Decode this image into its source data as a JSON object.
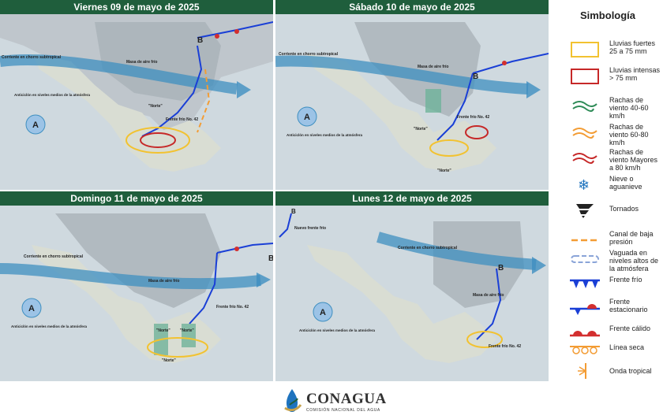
{
  "panels": [
    {
      "title": "Viernes 09 de mayo de 2025",
      "labels": {
        "jet": "Corriente en chorro subtropical",
        "air": "Masa de aire frío",
        "anti": "Anticiclón en niveles medios de la atmósfera",
        "front": "Frente frío No. 42",
        "norte1": "\"Norte\""
      }
    },
    {
      "title": "Sábado 10 de mayo de 2025",
      "labels": {
        "jet": "Corriente en chorro subtropical",
        "air": "Masa de aire frío",
        "anti": "Anticiclón en niveles medios de la atmósfera",
        "front": "Frente frío No. 42",
        "norte1": "\"Norte\"",
        "norte2": "\"Norte\""
      }
    },
    {
      "title": "Domingo 11 de mayo de 2025",
      "labels": {
        "jet": "Corriente en chorro subtropical",
        "air": "Masa de aire frío",
        "anti": "Anticiclón en niveles medios de la atmósfera",
        "front": "Frente frío No. 42",
        "norte1": "\"Norte\"",
        "norte2": "\"Norte\"",
        "norte3": "\"Norte\""
      }
    },
    {
      "title": "Lunes 12 de mayo de 2025",
      "labels": {
        "jet": "Corriente en chorro subtropical",
        "air": "Masa de aire frío",
        "anti": "Anticiclón en niveles medios de la atmósfera",
        "front": "Frente frío No. 42",
        "newfront": "Nuevo frente frío"
      }
    }
  ],
  "legend": {
    "title": "Simbología",
    "items": [
      {
        "label": "Lluvias fuertes 25 a 75 mm",
        "icon": "yellow-box-icon"
      },
      {
        "label": "Lluvias intensas > 75 mm",
        "icon": "red-box-icon"
      },
      {
        "label": "Rachas de viento 40-60 km/h",
        "icon": "green-wind-icon"
      },
      {
        "label": "Rachas de viento 60-80 km/h",
        "icon": "orange-wind-icon"
      },
      {
        "label": "Rachas de viento Mayores a 80 km/h",
        "icon": "red-wind-icon"
      },
      {
        "label": "Nieve o aguanieve",
        "icon": "snowflake-icon"
      },
      {
        "label": "Tornados",
        "icon": "tornado-icon"
      },
      {
        "label": "Canal de baja presión",
        "icon": "trough-icon"
      },
      {
        "label": "Vaguada en niveles altos de la atmósfera",
        "icon": "upper-trough-icon"
      },
      {
        "label": "Frente frío",
        "icon": "cold-front-icon"
      },
      {
        "label": "Frente estacionario",
        "icon": "stationary-front-icon"
      },
      {
        "label": "Frente cálido",
        "icon": "warm-front-icon"
      },
      {
        "label": "Línea seca",
        "icon": "dry-line-icon"
      },
      {
        "label": "Onda tropical",
        "icon": "tropical-wave-icon"
      }
    ]
  },
  "map_letters": {
    "high": "A",
    "low": "B"
  },
  "footer": {
    "brand": "CONAGUA",
    "subtitle": "COMISIÓN NACIONAL DEL AGUA"
  },
  "colors": {
    "header": "#1f5e3c",
    "jet": "#3f8fc0",
    "cold_front": "#1a3fd6",
    "warm_front": "#d32f2f",
    "yellow": "#f2c230",
    "red": "#c62828"
  }
}
